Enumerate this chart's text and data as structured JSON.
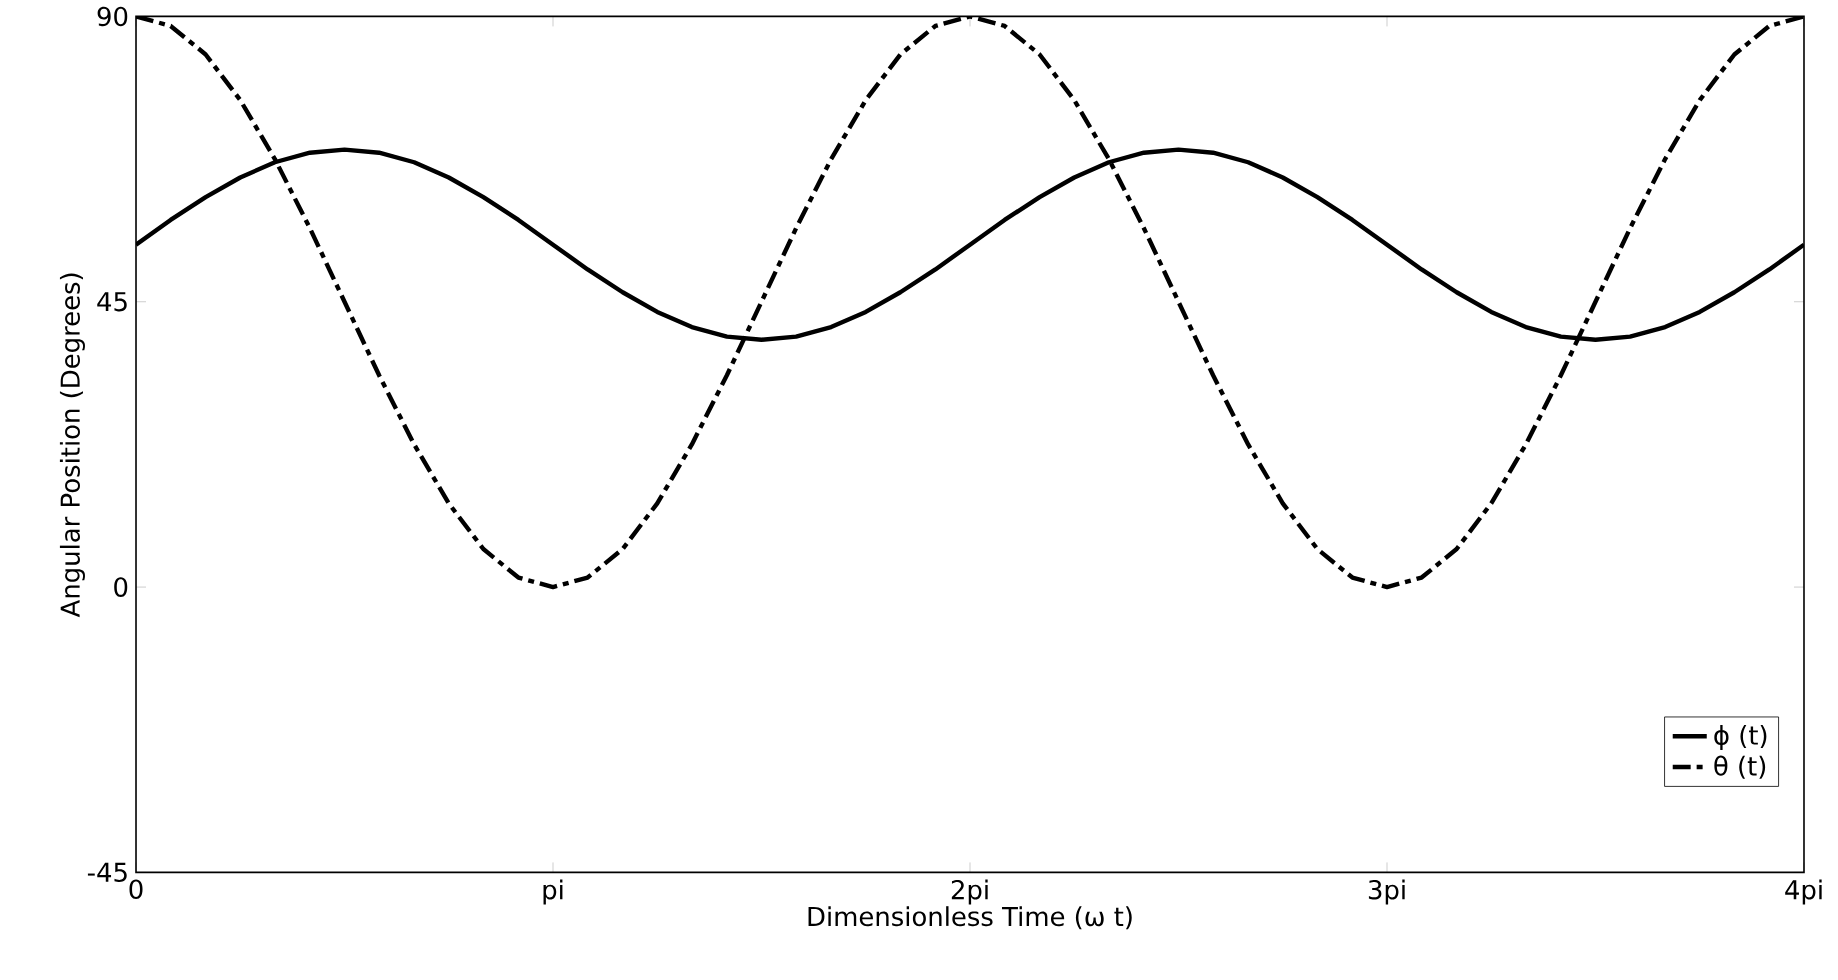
{
  "chart_data": {
    "type": "line",
    "xlabel": "Dimensionless Time (ω t)",
    "ylabel": "Angular Position (Degrees)",
    "x": [
      0,
      0.083,
      0.167,
      0.25,
      0.333,
      0.417,
      0.5,
      0.583,
      0.667,
      0.75,
      0.833,
      0.917,
      1,
      1.083,
      1.167,
      1.25,
      1.333,
      1.417,
      1.5,
      1.583,
      1.667,
      1.75,
      1.833,
      1.917,
      2,
      2.083,
      2.167,
      2.25,
      2.333,
      2.417,
      2.5,
      2.583,
      2.667,
      2.75,
      2.833,
      2.917,
      3,
      3.083,
      3.167,
      3.25,
      3.333,
      3.417,
      3.5,
      3.583,
      3.667,
      3.75,
      3.833,
      3.917,
      4
    ],
    "series": [
      {
        "name": "ϕ (t)",
        "color": "#000000",
        "line_style": "solid",
        "values": [
          54,
          57.9,
          61.5,
          64.6,
          67.0,
          68.5,
          69,
          68.5,
          67.0,
          64.6,
          61.5,
          57.9,
          54,
          50.1,
          46.5,
          43.4,
          41.0,
          39.5,
          39,
          39.5,
          41.0,
          43.4,
          46.5,
          50.1,
          54,
          57.9,
          61.5,
          64.6,
          67.0,
          68.5,
          69,
          68.5,
          67.0,
          64.6,
          61.5,
          57.9,
          54,
          50.1,
          46.5,
          43.4,
          41.0,
          39.5,
          39,
          39.5,
          41.0,
          43.4,
          46.5,
          50.1,
          54
        ]
      },
      {
        "name": "θ (t)",
        "color": "#000000",
        "line_style": "dashdot",
        "values": [
          90,
          88.5,
          84.0,
          76.8,
          67.5,
          56.6,
          45,
          33.4,
          22.5,
          13.2,
          6.0,
          1.5,
          0,
          1.5,
          6.0,
          13.2,
          22.5,
          33.4,
          45,
          56.6,
          67.5,
          76.8,
          84.0,
          88.5,
          90,
          88.5,
          84.0,
          76.8,
          67.5,
          56.6,
          45,
          33.4,
          22.5,
          13.2,
          6.0,
          1.5,
          0,
          1.5,
          6.0,
          13.2,
          22.5,
          33.4,
          45,
          56.6,
          67.5,
          76.8,
          84.0,
          88.5,
          90
        ]
      }
    ],
    "xlim": [
      0,
      4
    ],
    "ylim": [
      -45,
      90
    ],
    "xticks": [
      0,
      {
        "value": 1,
        "label": "pi"
      },
      {
        "value": 2,
        "label": "2pi"
      },
      {
        "value": 3,
        "label": "3pi"
      },
      {
        "value": 4,
        "label": "4pi"
      }
    ],
    "yticks": [
      -45,
      0,
      45,
      90
    ],
    "legend": "bottom right"
  }
}
